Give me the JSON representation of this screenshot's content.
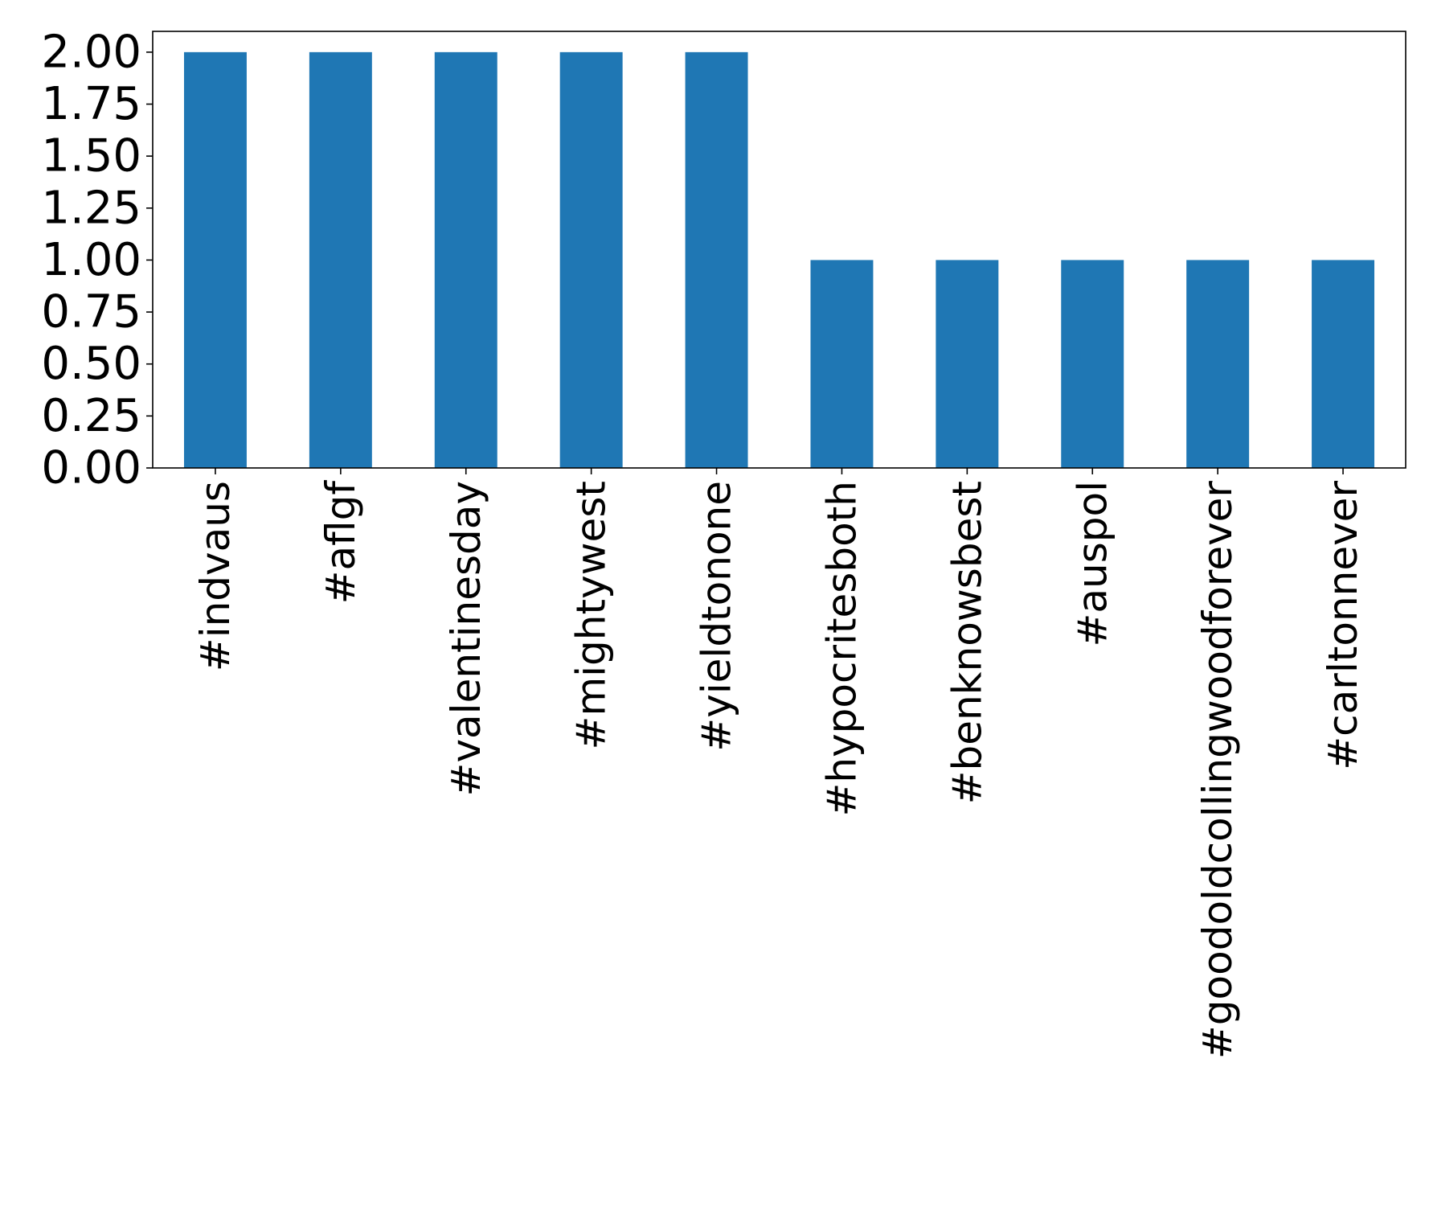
{
  "chart_data": {
    "type": "bar",
    "title": "",
    "xlabel": "",
    "ylabel": "",
    "categories": [
      "#indvaus",
      "#aflgf",
      "#valentinesday",
      "#mightywest",
      "#yieldtonone",
      "#hypocritesboth",
      "#benknowsbest",
      "#auspol",
      "#goodoldcollingwoodforever",
      "#carltonnever"
    ],
    "values": [
      2,
      2,
      2,
      2,
      2,
      1,
      1,
      1,
      1,
      1
    ],
    "ylim": [
      0,
      2.1
    ],
    "yticks": [
      "0.00",
      "0.25",
      "0.50",
      "0.75",
      "1.00",
      "1.25",
      "1.50",
      "1.75",
      "2.00"
    ],
    "bar_color": "#1f77b4",
    "grid": false,
    "legend": "none"
  }
}
